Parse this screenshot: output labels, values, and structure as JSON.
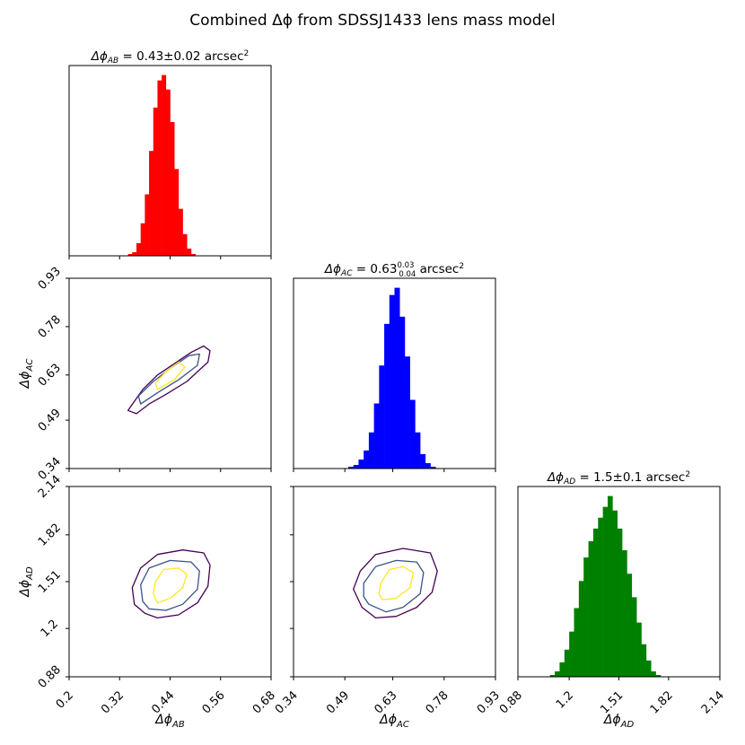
{
  "title": "Combined Δϕ from SDSSJ1433 lens mass model",
  "chart_data": {
    "type": "corner",
    "parameters": [
      {
        "key": "AB",
        "axis_label": "Δϕ",
        "axis_sub": "AB",
        "range": [
          0.2,
          0.68
        ],
        "ticks": [
          "0.2",
          "0.32",
          "0.44",
          "0.56",
          "0.68"
        ],
        "tick_values": [
          0.2,
          0.32,
          0.44,
          0.56,
          0.68
        ],
        "hist_title": {
          "pre": "Δϕ",
          "sub": "AB",
          "main": " = 0.43±0.02 arcsec",
          "sup": "2"
        },
        "color": "#ff0000",
        "hist": {
          "bins": [
            0.34,
            0.35,
            0.36,
            0.37,
            0.38,
            0.39,
            0.4,
            0.41,
            0.42,
            0.43,
            0.44,
            0.45,
            0.46,
            0.47,
            0.48,
            0.49,
            0.5
          ],
          "counts": [
            1,
            2,
            7,
            18,
            34,
            58,
            82,
            97,
            100,
            92,
            74,
            48,
            26,
            12,
            4,
            1
          ]
        }
      },
      {
        "key": "AC",
        "axis_label": "Δϕ",
        "axis_sub": "AC",
        "range": [
          0.34,
          0.93
        ],
        "ticks": [
          "0.34",
          "0.49",
          "0.63",
          "0.78",
          "0.93"
        ],
        "tick_values": [
          0.34,
          0.49,
          0.63,
          0.78,
          0.93
        ],
        "hist_title": {
          "pre": "Δϕ",
          "sub": "AC",
          "main": " = 0.63",
          "sup": "0.03",
          "low": "0.04",
          "post": " arcsec",
          "sup2": "2"
        },
        "color": "#0000ff",
        "hist": {
          "bins": [
            0.5,
            0.515,
            0.53,
            0.545,
            0.56,
            0.575,
            0.59,
            0.605,
            0.62,
            0.635,
            0.65,
            0.665,
            0.68,
            0.695,
            0.71,
            0.725,
            0.74,
            0.755
          ],
          "counts": [
            1,
            2,
            5,
            10,
            20,
            36,
            57,
            80,
            96,
            100,
            84,
            62,
            38,
            20,
            8,
            3,
            1
          ]
        }
      },
      {
        "key": "AD",
        "axis_label": "Δϕ",
        "axis_sub": "AD",
        "range": [
          0.88,
          2.14
        ],
        "ticks": [
          "0.88",
          "1.2",
          "1.51",
          "1.82",
          "2.14"
        ],
        "tick_values": [
          0.88,
          1.2,
          1.51,
          1.82,
          2.14
        ],
        "hist_title": {
          "pre": "Δϕ",
          "sub": "AD",
          "main": " = 1.5±0.1 arcsec",
          "sup": "2"
        },
        "color": "#008000",
        "hist": {
          "bins": [
            1.08,
            1.11,
            1.14,
            1.17,
            1.2,
            1.23,
            1.26,
            1.29,
            1.32,
            1.35,
            1.38,
            1.41,
            1.44,
            1.47,
            1.5,
            1.53,
            1.56,
            1.59,
            1.62,
            1.65,
            1.68,
            1.71,
            1.74,
            1.77
          ],
          "counts": [
            1,
            3,
            8,
            15,
            25,
            38,
            53,
            66,
            75,
            82,
            88,
            94,
            100,
            92,
            82,
            70,
            57,
            44,
            30,
            18,
            9,
            3,
            1
          ]
        }
      }
    ],
    "contour_colors": [
      "#440154",
      "#3b528b",
      "#fde725"
    ],
    "contour_levels": [
      "outer",
      "middle",
      "inner"
    ],
    "contours": {
      "AC_vs_AB": {
        "center": [
          0.435,
          0.625
        ],
        "outer": [
          [
            0.36,
            0.51
          ],
          [
            0.39,
            0.54
          ],
          [
            0.43,
            0.57
          ],
          [
            0.48,
            0.61
          ],
          [
            0.53,
            0.67
          ],
          [
            0.535,
            0.705
          ],
          [
            0.52,
            0.72
          ],
          [
            0.49,
            0.7
          ],
          [
            0.45,
            0.665
          ],
          [
            0.41,
            0.63
          ],
          [
            0.375,
            0.585
          ],
          [
            0.34,
            0.52
          ]
        ],
        "middle": [
          [
            0.37,
            0.54
          ],
          [
            0.41,
            0.575
          ],
          [
            0.46,
            0.615
          ],
          [
            0.505,
            0.66
          ],
          [
            0.51,
            0.695
          ],
          [
            0.485,
            0.69
          ],
          [
            0.445,
            0.655
          ],
          [
            0.4,
            0.61
          ],
          [
            0.365,
            0.565
          ]
        ],
        "inner": [
          [
            0.41,
            0.585
          ],
          [
            0.45,
            0.615
          ],
          [
            0.475,
            0.655
          ],
          [
            0.46,
            0.67
          ],
          [
            0.43,
            0.64
          ],
          [
            0.405,
            0.605
          ]
        ]
      },
      "AD_vs_AB": {
        "center": [
          0.435,
          1.5
        ],
        "outer": [
          [
            0.38,
            1.3
          ],
          [
            0.41,
            1.27
          ],
          [
            0.46,
            1.29
          ],
          [
            0.505,
            1.37
          ],
          [
            0.53,
            1.48
          ],
          [
            0.535,
            1.62
          ],
          [
            0.52,
            1.7
          ],
          [
            0.47,
            1.72
          ],
          [
            0.41,
            1.69
          ],
          [
            0.37,
            1.6
          ],
          [
            0.35,
            1.47
          ],
          [
            0.355,
            1.36
          ]
        ],
        "middle": [
          [
            0.39,
            1.33
          ],
          [
            0.43,
            1.32
          ],
          [
            0.47,
            1.36
          ],
          [
            0.505,
            1.46
          ],
          [
            0.51,
            1.58
          ],
          [
            0.49,
            1.64
          ],
          [
            0.44,
            1.65
          ],
          [
            0.39,
            1.6
          ],
          [
            0.37,
            1.49
          ],
          [
            0.375,
            1.38
          ]
        ],
        "inner": [
          [
            0.41,
            1.37
          ],
          [
            0.44,
            1.4
          ],
          [
            0.47,
            1.47
          ],
          [
            0.48,
            1.56
          ],
          [
            0.46,
            1.6
          ],
          [
            0.425,
            1.59
          ],
          [
            0.405,
            1.51
          ],
          [
            0.4,
            1.43
          ]
        ]
      },
      "AD_vs_AC": {
        "center": [
          0.63,
          1.5
        ],
        "outer": [
          [
            0.54,
            1.34
          ],
          [
            0.58,
            1.27
          ],
          [
            0.64,
            1.28
          ],
          [
            0.7,
            1.34
          ],
          [
            0.745,
            1.44
          ],
          [
            0.76,
            1.58
          ],
          [
            0.74,
            1.7
          ],
          [
            0.66,
            1.73
          ],
          [
            0.58,
            1.69
          ],
          [
            0.535,
            1.58
          ],
          [
            0.515,
            1.46
          ]
        ],
        "middle": [
          [
            0.56,
            1.36
          ],
          [
            0.61,
            1.31
          ],
          [
            0.66,
            1.34
          ],
          [
            0.71,
            1.43
          ],
          [
            0.72,
            1.57
          ],
          [
            0.7,
            1.64
          ],
          [
            0.64,
            1.65
          ],
          [
            0.58,
            1.61
          ],
          [
            0.545,
            1.5
          ],
          [
            0.545,
            1.41
          ]
        ],
        "inner": [
          [
            0.6,
            1.39
          ],
          [
            0.64,
            1.4
          ],
          [
            0.68,
            1.47
          ],
          [
            0.69,
            1.57
          ],
          [
            0.66,
            1.61
          ],
          [
            0.62,
            1.59
          ],
          [
            0.595,
            1.5
          ],
          [
            0.59,
            1.43
          ]
        ]
      }
    }
  }
}
